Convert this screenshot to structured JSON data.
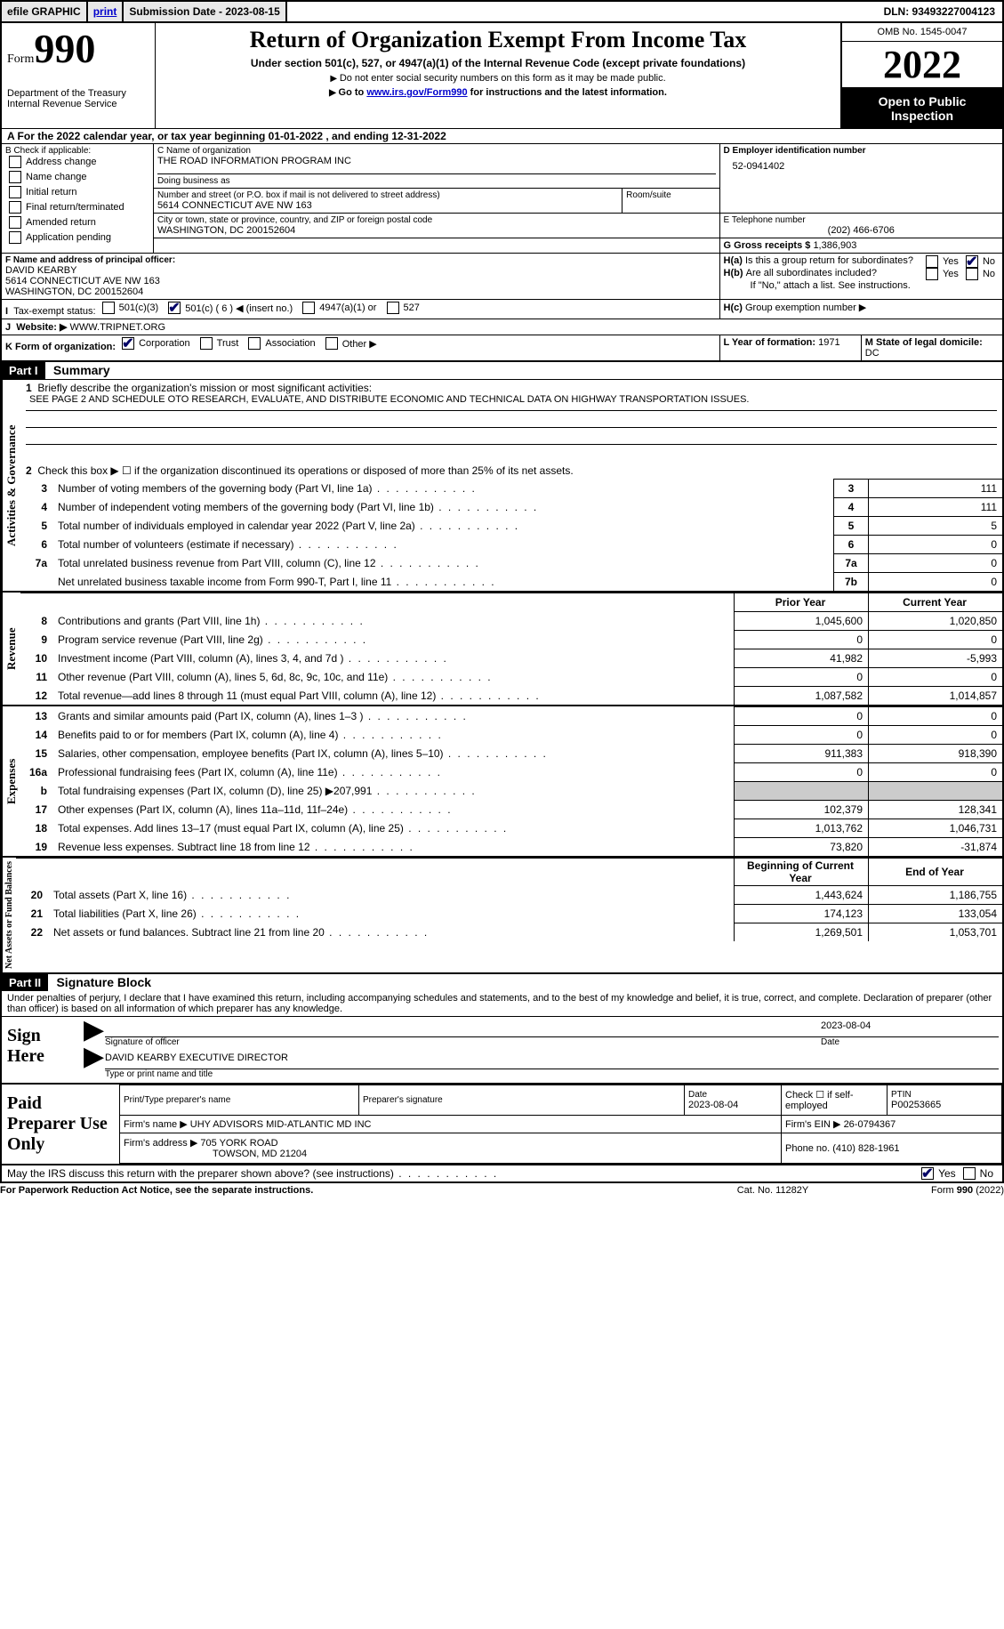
{
  "topbar": {
    "efile": "efile GRAPHIC",
    "print": "print",
    "submission": "Submission Date - 2023-08-15",
    "dln": "DLN: 93493227004123"
  },
  "header": {
    "form_word": "Form",
    "form_num": "990",
    "dept": "Department of the Treasury",
    "irs": "Internal Revenue Service",
    "title": "Return of Organization Exempt From Income Tax",
    "sub1": "Under section 501(c), 527, or 4947(a)(1) of the Internal Revenue Code (except private foundations)",
    "sub2": "Do not enter social security numbers on this form as it may be made public.",
    "sub3_pre": "Go to ",
    "sub3_link": "www.irs.gov/Form990",
    "sub3_post": " for instructions and the latest information.",
    "omb": "OMB No. 1545-0047",
    "year": "2022",
    "otp": "Open to Public Inspection"
  },
  "periodA": "A For the 2022 calendar year, or tax year beginning 01-01-2022    , and ending 12-31-2022",
  "boxB": {
    "title": "B Check if applicable:",
    "items": [
      "Address change",
      "Name change",
      "Initial return",
      "Final return/terminated",
      "Amended return",
      "Application pending"
    ]
  },
  "boxC": {
    "name_lbl": "C Name of organization",
    "name": "THE ROAD INFORMATION PROGRAM INC",
    "dba_lbl": "Doing business as",
    "dba": "",
    "addr_lbl": "Number and street (or P.O. box if mail is not delivered to street address)",
    "room_lbl": "Room/suite",
    "addr": "5614 CONNECTICUT AVE NW 163",
    "city_lbl": "City or town, state or province, country, and ZIP or foreign postal code",
    "city": "WASHINGTON, DC  200152604"
  },
  "boxD": {
    "lbl": "D Employer identification number",
    "val": "52-0941402"
  },
  "boxE": {
    "lbl": "E Telephone number",
    "val": "(202) 466-6706"
  },
  "boxG": {
    "lbl": "G Gross receipts $",
    "val": "1,386,903"
  },
  "boxF": {
    "lbl": "F  Name and address of principal officer:",
    "name": "DAVID KEARBY",
    "addr1": "5614 CONNECTICUT AVE NW 163",
    "addr2": "WASHINGTON, DC  200152604"
  },
  "boxH": {
    "a": "Is this a group return for subordinates?",
    "b": "Are all subordinates included?",
    "b_note": "If \"No,\" attach a list. See instructions.",
    "c": "Group exemption number ▶",
    "yes": "Yes",
    "no": "No"
  },
  "boxI": {
    "lbl": "Tax-exempt status:",
    "o1": "501(c)(3)",
    "o2": "501(c) ( 6 ) ◀ (insert no.)",
    "o3": "4947(a)(1) or",
    "o4": "527"
  },
  "boxJ": {
    "lbl": "Website: ▶",
    "val": "WWW.TRIPNET.ORG"
  },
  "boxK": {
    "lbl": "K Form of organization:",
    "o1": "Corporation",
    "o2": "Trust",
    "o3": "Association",
    "o4": "Other ▶"
  },
  "boxL": {
    "lbl": "L Year of formation:",
    "val": "1971"
  },
  "boxM": {
    "lbl": "M State of legal domicile:",
    "val": "DC"
  },
  "part1": {
    "hdr": "Part I",
    "title": "Summary",
    "l1_lbl": "Briefly describe the organization's mission or most significant activities:",
    "l1_txt": "SEE PAGE 2 AND SCHEDULE OTO RESEARCH, EVALUATE, AND DISTRIBUTE ECONOMIC AND TECHNICAL DATA ON HIGHWAY TRANSPORTATION ISSUES.",
    "l2": "Check this box ▶ ☐  if the organization discontinued its operations or disposed of more than 25% of its net assets.",
    "rows_ag": [
      {
        "n": "3",
        "d": "Number of voting members of the governing body (Part VI, line 1a)",
        "box": "3",
        "v": "111"
      },
      {
        "n": "4",
        "d": "Number of independent voting members of the governing body (Part VI, line 1b)",
        "box": "4",
        "v": "111"
      },
      {
        "n": "5",
        "d": "Total number of individuals employed in calendar year 2022 (Part V, line 2a)",
        "box": "5",
        "v": "5"
      },
      {
        "n": "6",
        "d": "Total number of volunteers (estimate if necessary)",
        "box": "6",
        "v": "0"
      },
      {
        "n": "7a",
        "d": "Total unrelated business revenue from Part VIII, column (C), line 12",
        "box": "7a",
        "v": "0"
      },
      {
        "n": "",
        "d": "Net unrelated business taxable income from Form 990-T, Part I, line 11",
        "box": "7b",
        "v": "0"
      }
    ],
    "col_py": "Prior Year",
    "col_cy": "Current Year",
    "rows_rev": [
      {
        "n": "8",
        "d": "Contributions and grants (Part VIII, line 1h)",
        "py": "1,045,600",
        "cy": "1,020,850"
      },
      {
        "n": "9",
        "d": "Program service revenue (Part VIII, line 2g)",
        "py": "0",
        "cy": "0"
      },
      {
        "n": "10",
        "d": "Investment income (Part VIII, column (A), lines 3, 4, and 7d )",
        "py": "41,982",
        "cy": "-5,993"
      },
      {
        "n": "11",
        "d": "Other revenue (Part VIII, column (A), lines 5, 6d, 8c, 9c, 10c, and 11e)",
        "py": "0",
        "cy": "0"
      },
      {
        "n": "12",
        "d": "Total revenue—add lines 8 through 11 (must equal Part VIII, column (A), line 12)",
        "py": "1,087,582",
        "cy": "1,014,857"
      }
    ],
    "rows_exp": [
      {
        "n": "13",
        "d": "Grants and similar amounts paid (Part IX, column (A), lines 1–3 )",
        "py": "0",
        "cy": "0"
      },
      {
        "n": "14",
        "d": "Benefits paid to or for members (Part IX, column (A), line 4)",
        "py": "0",
        "cy": "0"
      },
      {
        "n": "15",
        "d": "Salaries, other compensation, employee benefits (Part IX, column (A), lines 5–10)",
        "py": "911,383",
        "cy": "918,390"
      },
      {
        "n": "16a",
        "d": "Professional fundraising fees (Part IX, column (A), line 11e)",
        "py": "0",
        "cy": "0"
      },
      {
        "n": "b",
        "d": "Total fundraising expenses (Part IX, column (D), line 25) ▶207,991",
        "py": "GREY",
        "cy": "GREY"
      },
      {
        "n": "17",
        "d": "Other expenses (Part IX, column (A), lines 11a–11d, 11f–24e)",
        "py": "102,379",
        "cy": "128,341"
      },
      {
        "n": "18",
        "d": "Total expenses. Add lines 13–17 (must equal Part IX, column (A), line 25)",
        "py": "1,013,762",
        "cy": "1,046,731"
      },
      {
        "n": "19",
        "d": "Revenue less expenses. Subtract line 18 from line 12",
        "py": "73,820",
        "cy": "-31,874"
      }
    ],
    "col_boy": "Beginning of Current Year",
    "col_eoy": "End of Year",
    "rows_net": [
      {
        "n": "20",
        "d": "Total assets (Part X, line 16)",
        "py": "1,443,624",
        "cy": "1,186,755"
      },
      {
        "n": "21",
        "d": "Total liabilities (Part X, line 26)",
        "py": "174,123",
        "cy": "133,054"
      },
      {
        "n": "22",
        "d": "Net assets or fund balances. Subtract line 21 from line 20",
        "py": "1,269,501",
        "cy": "1,053,701"
      }
    ],
    "tab_ag": "Activities & Governance",
    "tab_rev": "Revenue",
    "tab_exp": "Expenses",
    "tab_net": "Net Assets or Fund Balances"
  },
  "part2": {
    "hdr": "Part II",
    "title": "Signature Block",
    "decl": "Under penalties of perjury, I declare that I have examined this return, including accompanying schedules and statements, and to the best of my knowledge and belief, it is true, correct, and complete. Declaration of preparer (other than officer) is based on all information of which preparer has any knowledge.",
    "sign_here": "Sign Here",
    "sig_officer": "Signature of officer",
    "date": "Date",
    "sig_date": "2023-08-04",
    "name_title": "DAVID KEARBY  EXECUTIVE DIRECTOR",
    "name_lbl": "Type or print name and title",
    "paid": "Paid Preparer Use Only",
    "pp_name_lbl": "Print/Type preparer's name",
    "pp_sig_lbl": "Preparer's signature",
    "pp_date_lbl": "Date",
    "pp_date": "2023-08-04",
    "pp_chk": "Check ☐ if self-employed",
    "ptin_lbl": "PTIN",
    "ptin": "P00253665",
    "firm_name_lbl": "Firm's name    ▶",
    "firm_name": "UHY ADVISORS MID-ATLANTIC MD INC",
    "firm_ein_lbl": "Firm's EIN ▶",
    "firm_ein": "26-0794367",
    "firm_addr_lbl": "Firm's address ▶",
    "firm_addr1": "705 YORK ROAD",
    "firm_addr2": "TOWSON, MD  21204",
    "phone_lbl": "Phone no.",
    "phone": "(410) 828-1961",
    "may": "May the IRS discuss this return with the preparer shown above? (see instructions)",
    "yes": "Yes",
    "no": "No"
  },
  "footer": {
    "pra": "For Paperwork Reduction Act Notice, see the separate instructions.",
    "cat": "Cat. No. 11282Y",
    "form": "Form 990 (2022)"
  }
}
